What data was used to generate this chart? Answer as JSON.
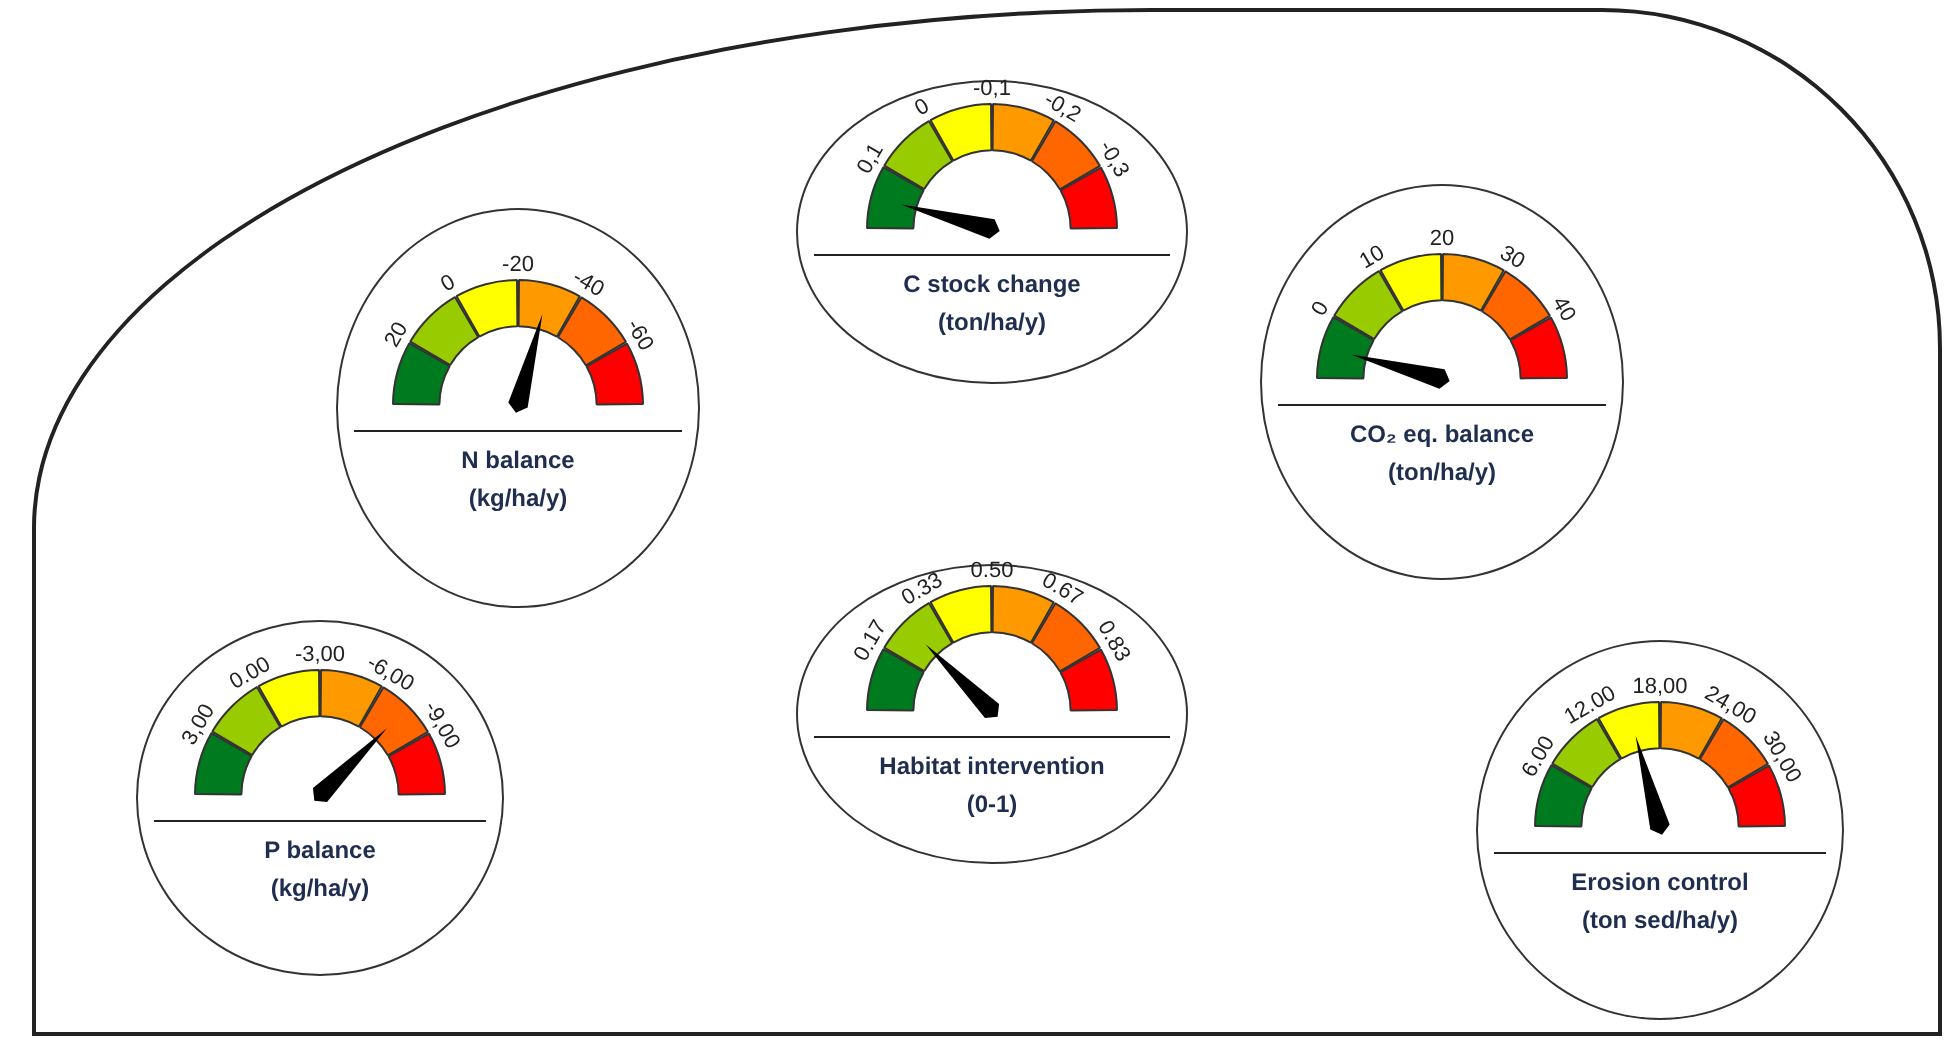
{
  "chart_data": [
    {
      "type": "donut",
      "title": "N balance",
      "subtitle": "(kg/ha/y)",
      "categories": [
        "20",
        "0",
        "-20",
        "-40",
        "-60",
        null
      ],
      "values": [
        16.7,
        16.7,
        16.6,
        16.7,
        16.7,
        16.6
      ],
      "colors": [
        "#007a1e",
        "#99cc00",
        "#ffff00",
        "#ff9900",
        "#ff6600",
        "#ff0000"
      ],
      "needle": "-40"
    },
    {
      "type": "donut",
      "title": "C stock change",
      "subtitle": "(ton/ha/y)",
      "categories": [
        "0,1",
        "0",
        "-0,1",
        "-0,2",
        "-0,3",
        null
      ],
      "values": [
        16.7,
        16.7,
        16.6,
        16.7,
        16.7,
        16.6
      ],
      "colors": [
        "#007a1e",
        "#99cc00",
        "#ffff00",
        "#ff9900",
        "#ff6600",
        "#ff0000"
      ],
      "needle": "0,1"
    },
    {
      "type": "donut",
      "title": "CO₂ eq. balance",
      "subtitle": "(ton/ha/y)",
      "categories": [
        "0",
        "10",
        "20",
        "30",
        "40",
        null
      ],
      "values": [
        16.7,
        16.7,
        16.6,
        16.7,
        16.7,
        16.6
      ],
      "colors": [
        "#007a1e",
        "#99cc00",
        "#ffff00",
        "#ff9900",
        "#ff6600",
        "#ff0000"
      ],
      "needle": "0"
    },
    {
      "type": "donut",
      "title": "P balance",
      "subtitle": "(kg/ha/y)",
      "categories": [
        "3,00",
        "0.00",
        "-3,00",
        "-6,00",
        "-9,00",
        null
      ],
      "values": [
        16.7,
        16.7,
        16.6,
        16.7,
        16.7,
        16.6
      ],
      "colors": [
        "#007a1e",
        "#99cc00",
        "#ffff00",
        "#ff9900",
        "#ff6600",
        "#ff0000"
      ],
      "needle": "-9,00"
    },
    {
      "type": "donut",
      "title": "Habitat intervention",
      "subtitle": "(0-1)",
      "categories": [
        "0.17",
        "0.33",
        "0.50",
        "0.67",
        "0.83",
        null
      ],
      "values": [
        16.7,
        16.7,
        16.6,
        16.7,
        16.7,
        16.6
      ],
      "colors": [
        "#007a1e",
        "#99cc00",
        "#ffff00",
        "#ff9900",
        "#ff6600",
        "#ff0000"
      ],
      "needle": "0.33"
    },
    {
      "type": "donut",
      "title": "Erosion control",
      "subtitle": "(ton sed/ha/y)",
      "categories": [
        "6.00",
        "12.00",
        "18,00",
        "24,00",
        "30,00",
        null
      ],
      "values": [
        16.7,
        16.7,
        16.6,
        16.7,
        16.7,
        16.6
      ],
      "colors": [
        "#007a1e",
        "#99cc00",
        "#ffff00",
        "#ff9900",
        "#ff6600",
        "#ff0000"
      ],
      "needle": "18,00"
    }
  ]
}
